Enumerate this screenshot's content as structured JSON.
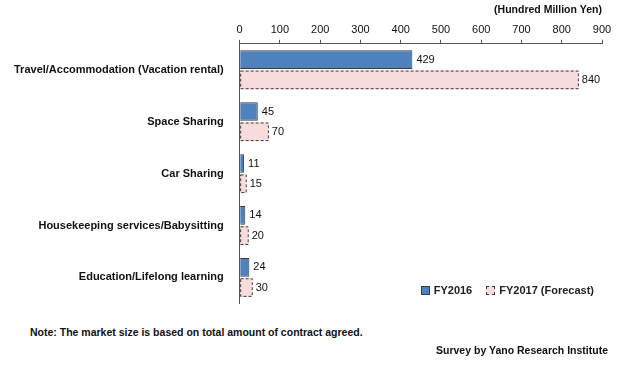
{
  "chart_data": {
    "type": "bar",
    "orientation": "horizontal",
    "x_label": "(Hundred Million Yen)",
    "categories": [
      "Travel/Accommodation (Vacation rental)",
      "Space Sharing",
      "Car Sharing",
      "Housekeeping services/Babysitting",
      "Education/Lifelong learning"
    ],
    "series": [
      {
        "name": "FY2016",
        "color": "#4f81bd",
        "values": [
          429,
          45,
          11,
          14,
          24
        ]
      },
      {
        "name": "FY2017 (Forecast)",
        "color": "#f9dcdc",
        "line_style": "dashed",
        "values": [
          840,
          70,
          15,
          20,
          30
        ]
      }
    ],
    "xlim": [
      0,
      900
    ],
    "xticks": [
      0,
      100,
      200,
      300,
      400,
      500,
      600,
      700,
      800,
      900
    ],
    "grid": false,
    "data_labels": true,
    "legend": "bottom-right",
    "annotations": [
      "Note: The market size is based on total amount of contract agreed.",
      "Survey by Yano Research Institute"
    ]
  }
}
